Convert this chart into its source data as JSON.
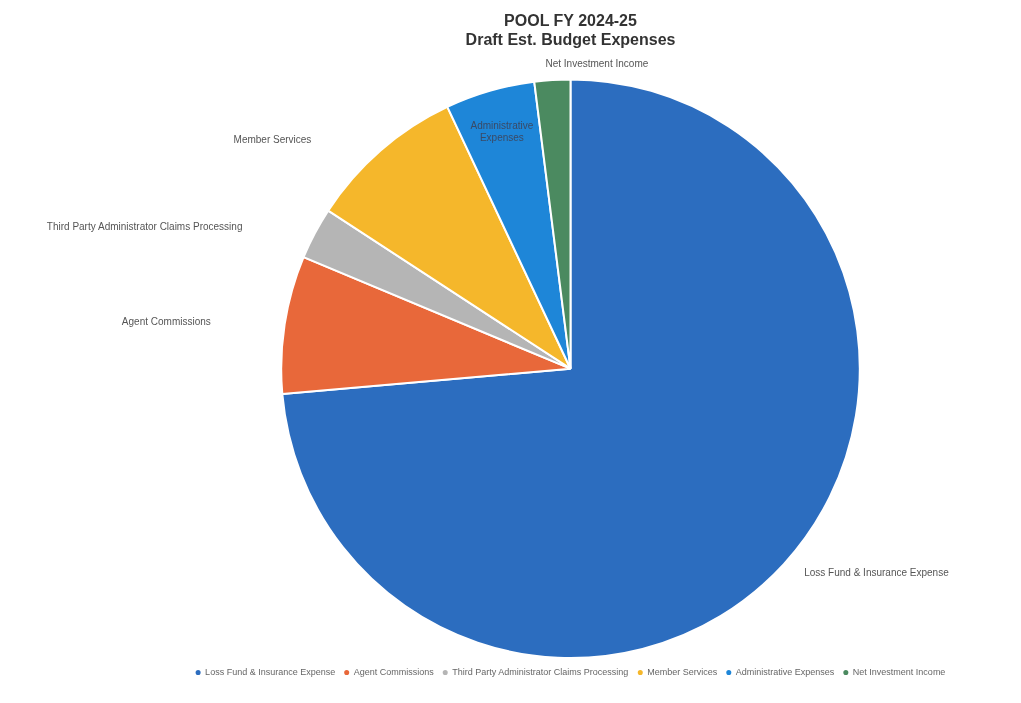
{
  "chart_data": {
    "type": "pie",
    "title": "POOL FY 2024-25",
    "subtitle": "Draft Est. Budget Expenses",
    "categories": [
      "Loss Fund & Insurance Expense",
      "Agent Commissions",
      "Third Party Administrator Claims Processing",
      "Member Services",
      "Administrative Expenses",
      "Net Investment Income"
    ],
    "values": [
      73.6,
      7.7,
      2.9,
      8.8,
      5,
      2
    ],
    "colors": [
      "#2c6dbf",
      "#e8683a",
      "#b5b5b5",
      "#f5b72b",
      "#1e86d8",
      "#4b8a60"
    ],
    "legend": "bottom"
  }
}
